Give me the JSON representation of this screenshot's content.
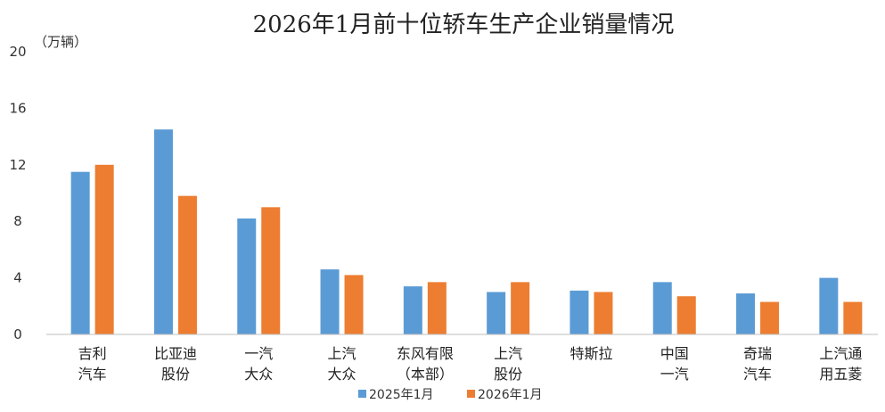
{
  "chart_data": {
    "type": "bar",
    "title": "2026年1月前十位轿车生产企业销量情况",
    "unit_label": "（万辆）",
    "ylim": [
      0,
      20
    ],
    "yticks": [
      0,
      4,
      8,
      12,
      16,
      20
    ],
    "grid": false,
    "legend_position": "bottom",
    "categories": [
      [
        "吉利",
        "汽车"
      ],
      [
        "比亚迪",
        "股份"
      ],
      [
        "一汽",
        "大众"
      ],
      [
        "上汽",
        "大众"
      ],
      [
        "东风有限",
        "（本部）"
      ],
      [
        "上汽",
        "股份"
      ],
      [
        "特斯拉"
      ],
      [
        "中国",
        "一汽"
      ],
      [
        "奇瑞",
        "汽车"
      ],
      [
        "上汽通",
        "用五菱"
      ]
    ],
    "series": [
      {
        "name": "2025年1月",
        "color": "#5b9bd5",
        "values": [
          11.5,
          14.5,
          8.2,
          4.6,
          3.4,
          3.0,
          3.1,
          3.7,
          2.9,
          4.0
        ]
      },
      {
        "name": "2026年1月",
        "color": "#ed7d31",
        "values": [
          12.0,
          9.8,
          9.0,
          4.2,
          3.7,
          3.7,
          3.0,
          2.7,
          2.3,
          2.3
        ]
      }
    ]
  }
}
